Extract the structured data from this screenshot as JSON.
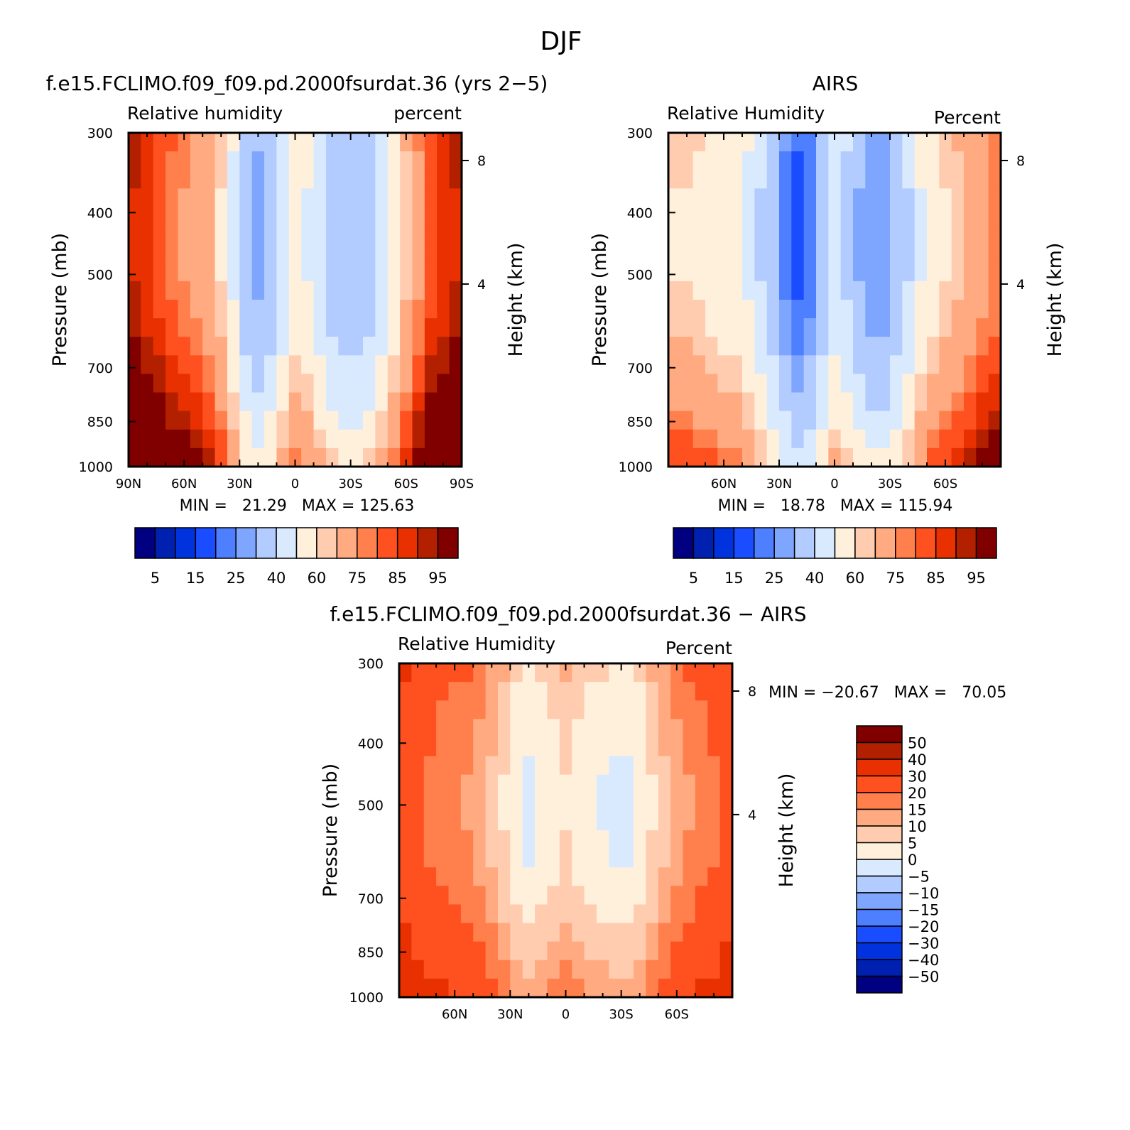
{
  "title": "DJF",
  "chart_data": [
    {
      "type": "heatmap",
      "id": "p1",
      "title": "f.e15.FCLIMO.f09_f09.pd.2000fsurdat.36 (yrs 2-5)",
      "left_label": "Relative humidity",
      "right_label": "percent",
      "ylabel": "Pressure (mb)",
      "ylabel_right": "Height (km)",
      "yticks": [
        "300",
        "400",
        "500",
        "700",
        "850",
        "1000"
      ],
      "yticks_right": [
        "8",
        "4"
      ],
      "xticks": [
        "90N",
        "60N",
        "30N",
        "0",
        "30S",
        "60S",
        "90S"
      ],
      "xlim": [
        90,
        -90
      ],
      "ylim": [
        300,
        1000
      ],
      "stats": "MIN =   21.29   MAX = 125.63",
      "levels": [
        5,
        10,
        15,
        20,
        25,
        30,
        40,
        50,
        60,
        65,
        75,
        80,
        85,
        90,
        95
      ],
      "colorbar_labels": [
        "5",
        "15",
        "25",
        "40",
        "60",
        "75",
        "85",
        "95"
      ],
      "colors": [
        "#000080",
        "#0020b0",
        "#0033dd",
        "#1a4dff",
        "#4d7fff",
        "#7fa6ff",
        "#b3ccff",
        "#d9eaff",
        "#fff0dc",
        "#ffccb0",
        "#ffaa80",
        "#ff7f4d",
        "#ff5020",
        "#e83000",
        "#b32000",
        "#800000"
      ],
      "profile": [
        92,
        88,
        84,
        80,
        77,
        74,
        70,
        62,
        50,
        36,
        30,
        36,
        46,
        56,
        52,
        44,
        38,
        34,
        34,
        38,
        46,
        56,
        66,
        76,
        84,
        88,
        92
      ]
    },
    {
      "type": "heatmap",
      "id": "p2",
      "title": "AIRS",
      "left_label": "Relative Humidity",
      "right_label": "Percent",
      "ylabel": "Pressure (mb)",
      "ylabel_right": "Height (km)",
      "yticks": [
        "300",
        "400",
        "500",
        "700",
        "850",
        "1000"
      ],
      "yticks_right": [
        "8",
        "4"
      ],
      "xticks": [
        "60N",
        "30N",
        "0",
        "30S",
        "60S"
      ],
      "xlim": [
        90,
        -90
      ],
      "ylim": [
        300,
        1000
      ],
      "stats": "MIN =   18.78   MAX = 115.94",
      "levels": [
        5,
        10,
        15,
        20,
        25,
        30,
        40,
        50,
        60,
        65,
        75,
        80,
        85,
        90,
        95
      ],
      "colorbar_labels": [
        "5",
        "15",
        "25",
        "40",
        "60",
        "75",
        "85",
        "95"
      ],
      "colors": [
        "#000080",
        "#0020b0",
        "#0033dd",
        "#1a4dff",
        "#4d7fff",
        "#7fa6ff",
        "#b3ccff",
        "#d9eaff",
        "#fff0dc",
        "#ffccb0",
        "#ffaa80",
        "#ff7f4d",
        "#ff5020",
        "#e83000",
        "#b32000",
        "#800000"
      ],
      "profile": [
        62,
        62,
        60,
        58,
        56,
        54,
        50,
        42,
        34,
        26,
        20,
        24,
        34,
        44,
        40,
        32,
        28,
        28,
        34,
        42,
        52,
        58,
        62,
        66,
        70,
        74,
        78
      ]
    },
    {
      "type": "heatmap",
      "id": "p3",
      "title": "f.e15.FCLIMO.f09_f09.pd.2000fsurdat.36 - AIRS",
      "left_label": "Relative Humidity",
      "right_label": "Percent",
      "ylabel": "Pressure (mb)",
      "ylabel_right": "Height (km)",
      "yticks": [
        "300",
        "400",
        "500",
        "700",
        "850",
        "1000"
      ],
      "yticks_right": [
        "8",
        "4"
      ],
      "xticks": [
        "60N",
        "30N",
        "0",
        "30S",
        "60S"
      ],
      "xlim": [
        90,
        -90
      ],
      "ylim": [
        300,
        1000
      ],
      "stats": "MIN = -20.67   MAX =   70.05",
      "levels": [
        -50,
        -40,
        -30,
        -20,
        -15,
        -10,
        -5,
        0,
        5,
        10,
        15,
        20,
        30,
        40,
        50
      ],
      "colorbar_labels": [
        "50",
        "40",
        "30",
        "20",
        "15",
        "10",
        "5",
        "0",
        "-5",
        "-10",
        "-15",
        "-20",
        "-30",
        "-40",
        "-50"
      ],
      "colors": [
        "#000080",
        "#0020b0",
        "#0033dd",
        "#1a4dff",
        "#4d7fff",
        "#7fa6ff",
        "#b3ccff",
        "#d9eaff",
        "#fff0dc",
        "#ffccb0",
        "#ffaa80",
        "#ff7f4d",
        "#ff5020",
        "#e83000",
        "#b32000",
        "#800000"
      ],
      "profile": [
        30,
        26,
        24,
        22,
        21,
        20,
        18,
        14,
        10,
        6,
        4,
        6,
        8,
        10,
        8,
        6,
        5,
        4,
        4,
        6,
        10,
        14,
        18,
        20,
        22,
        24,
        28
      ]
    }
  ]
}
